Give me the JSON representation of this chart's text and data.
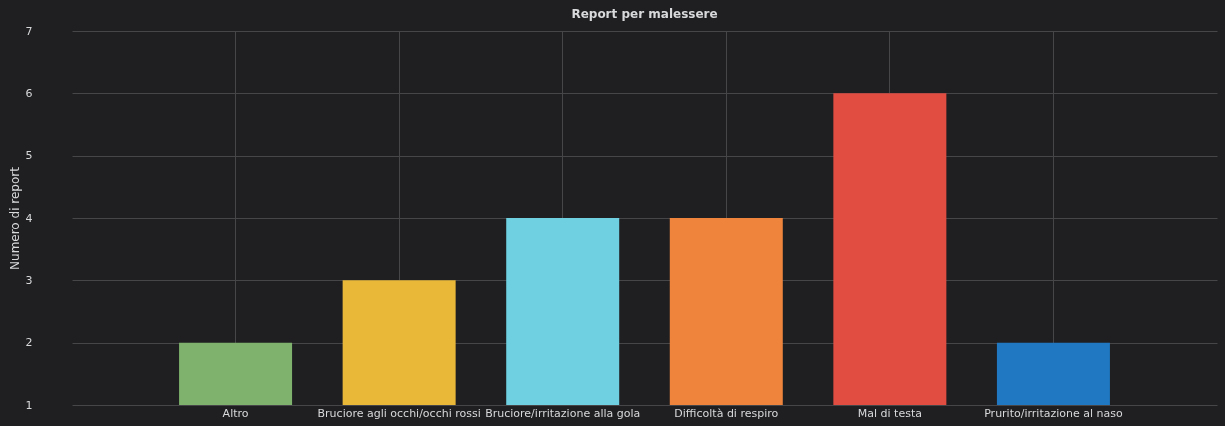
{
  "chart_data": {
    "type": "bar",
    "title": "Report per malessere",
    "ylabel": "Numero di report",
    "categories": [
      "Altro",
      "Bruciore agli occhi/occhi rossi",
      "Bruciore/irritazione alla gola",
      "Difficoltà di respiro",
      "Mal di testa",
      "Prurito/irritazione al naso"
    ],
    "values": [
      2,
      3,
      4,
      4,
      6,
      2
    ],
    "colors": [
      "#7eb26d",
      "#eab839",
      "#6ed0e0",
      "#ef843c",
      "#e24d42",
      "#1f78c1"
    ],
    "ylim": [
      1,
      7
    ],
    "yticks": [
      1,
      2,
      3,
      4,
      5,
      6,
      7
    ],
    "grid": true
  }
}
